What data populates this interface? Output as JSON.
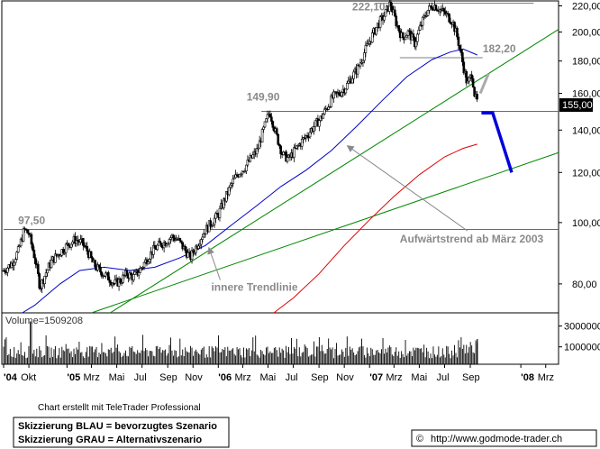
{
  "chart_data": [
    {
      "type": "candlestick",
      "y_scale": "log",
      "ylim": [
        72,
        224
      ],
      "y_ticks": [
        80,
        100,
        120,
        140,
        160,
        180,
        200,
        220
      ],
      "y_tick_labels": [
        "80,00",
        "100,00",
        "120,00",
        "140,00",
        "160,00",
        "180,00",
        "200,00",
        "220,00"
      ],
      "x_range": [
        "2004-08-01",
        "2008-04-01"
      ],
      "x_tick_labels": [
        {
          "label": "'04",
          "date": "2004-08-01",
          "bold": true
        },
        {
          "label": "Okt",
          "date": "2004-10-01",
          "bold": false
        },
        {
          "label": "'05",
          "date": "2005-01-01",
          "bold": true
        },
        {
          "label": "Mrz",
          "date": "2005-03-01",
          "bold": false
        },
        {
          "label": "Mai",
          "date": "2005-05-01",
          "bold": false
        },
        {
          "label": "Jul",
          "date": "2005-07-01",
          "bold": false
        },
        {
          "label": "Sep",
          "date": "2005-09-01",
          "bold": false
        },
        {
          "label": "Nov",
          "date": "2005-11-01",
          "bold": false
        },
        {
          "label": "'06",
          "date": "2006-01-01",
          "bold": true
        },
        {
          "label": "Mrz",
          "date": "2006-03-01",
          "bold": false
        },
        {
          "label": "Mai",
          "date": "2006-05-01",
          "bold": false
        },
        {
          "label": "Jul",
          "date": "2006-07-01",
          "bold": false
        },
        {
          "label": "Sep",
          "date": "2006-09-01",
          "bold": false
        },
        {
          "label": "Nov",
          "date": "2006-11-01",
          "bold": false
        },
        {
          "label": "'07",
          "date": "2007-01-01",
          "bold": true
        },
        {
          "label": "Mrz",
          "date": "2007-03-01",
          "bold": false
        },
        {
          "label": "Mai",
          "date": "2007-05-01",
          "bold": false
        },
        {
          "label": "Jul",
          "date": "2007-07-01",
          "bold": false
        },
        {
          "label": "Sep",
          "date": "2007-09-01",
          "bold": false
        },
        {
          "label": "'08",
          "date": "2008-01-01",
          "bold": true
        },
        {
          "label": "Mrz",
          "date": "2008-03-01",
          "bold": false
        }
      ],
      "price_path": [
        [
          "2004-08-01",
          84
        ],
        [
          "2004-08-20",
          86
        ],
        [
          "2004-09-05",
          90
        ],
        [
          "2004-09-20",
          97.5
        ],
        [
          "2004-10-01",
          96
        ],
        [
          "2004-10-15",
          88
        ],
        [
          "2004-10-28",
          79
        ],
        [
          "2004-11-10",
          83
        ],
        [
          "2004-11-25",
          87
        ],
        [
          "2004-12-10",
          89
        ],
        [
          "2005-01-01",
          92
        ],
        [
          "2005-01-20",
          94
        ],
        [
          "2005-02-05",
          93
        ],
        [
          "2005-02-20",
          90
        ],
        [
          "2005-03-05",
          86
        ],
        [
          "2005-03-20",
          84
        ],
        [
          "2005-04-10",
          82
        ],
        [
          "2005-04-25",
          80
        ],
        [
          "2005-05-10",
          81
        ],
        [
          "2005-05-25",
          83
        ],
        [
          "2005-06-10",
          82
        ],
        [
          "2005-06-25",
          84
        ],
        [
          "2005-07-10",
          87
        ],
        [
          "2005-07-25",
          90
        ],
        [
          "2005-08-10",
          92
        ],
        [
          "2005-08-25",
          93
        ],
        [
          "2005-09-10",
          95
        ],
        [
          "2005-09-25",
          94
        ],
        [
          "2005-10-10",
          91
        ],
        [
          "2005-10-25",
          88
        ],
        [
          "2005-11-10",
          92
        ],
        [
          "2005-11-25",
          96
        ],
        [
          "2005-12-10",
          99
        ],
        [
          "2006-01-01",
          103
        ],
        [
          "2006-01-20",
          110
        ],
        [
          "2006-02-05",
          116
        ],
        [
          "2006-02-20",
          120
        ],
        [
          "2006-03-05",
          122
        ],
        [
          "2006-03-20",
          126
        ],
        [
          "2006-04-05",
          130
        ],
        [
          "2006-04-20",
          140
        ],
        [
          "2006-05-05",
          149.9
        ],
        [
          "2006-05-20",
          138
        ],
        [
          "2006-06-05",
          128
        ],
        [
          "2006-06-20",
          126
        ],
        [
          "2006-07-05",
          130
        ],
        [
          "2006-07-20",
          134
        ],
        [
          "2006-08-05",
          138
        ],
        [
          "2006-08-20",
          142
        ],
        [
          "2006-09-05",
          146
        ],
        [
          "2006-09-20",
          152
        ],
        [
          "2006-10-05",
          158
        ],
        [
          "2006-10-20",
          160
        ],
        [
          "2006-11-05",
          164
        ],
        [
          "2006-11-20",
          170
        ],
        [
          "2006-12-05",
          176
        ],
        [
          "2006-12-20",
          186
        ],
        [
          "2007-01-05",
          196
        ],
        [
          "2007-01-20",
          205
        ],
        [
          "2007-02-05",
          212
        ],
        [
          "2007-02-20",
          222.1
        ],
        [
          "2007-03-05",
          208
        ],
        [
          "2007-03-20",
          196
        ],
        [
          "2007-04-05",
          200
        ],
        [
          "2007-04-20",
          192
        ],
        [
          "2007-05-05",
          205
        ],
        [
          "2007-05-20",
          216
        ],
        [
          "2007-06-05",
          221
        ],
        [
          "2007-06-20",
          217
        ],
        [
          "2007-07-05",
          213
        ],
        [
          "2007-07-20",
          208
        ],
        [
          "2007-08-01",
          196
        ],
        [
          "2007-08-15",
          177
        ],
        [
          "2007-08-25",
          165
        ],
        [
          "2007-09-05",
          172
        ],
        [
          "2007-09-12",
          158
        ],
        [
          "2007-09-18",
          155
        ]
      ],
      "moving_averages": [
        {
          "color": "#0000cc",
          "points": [
            [
              "2004-09-15",
              72
            ],
            [
              "2004-10-15",
              74
            ],
            [
              "2004-11-15",
              77
            ],
            [
              "2004-12-15",
              80
            ],
            [
              "2005-02-01",
              84
            ],
            [
              "2005-04-01",
              85
            ],
            [
              "2005-06-01",
              84
            ],
            [
              "2005-08-01",
              85
            ],
            [
              "2005-10-01",
              88
            ],
            [
              "2005-12-01",
              92
            ],
            [
              "2006-02-01",
              99
            ],
            [
              "2006-04-01",
              106
            ],
            [
              "2006-06-01",
              114
            ],
            [
              "2006-08-01",
              121
            ],
            [
              "2006-10-01",
              130
            ],
            [
              "2006-12-01",
              142
            ],
            [
              "2007-02-01",
              156
            ],
            [
              "2007-04-01",
              170
            ],
            [
              "2007-06-01",
              181
            ],
            [
              "2007-07-15",
              186
            ],
            [
              "2007-08-15",
              188
            ],
            [
              "2007-09-18",
              184
            ]
          ]
        },
        {
          "color": "#dd0000",
          "points": [
            [
              "2006-05-15",
              72
            ],
            [
              "2006-07-01",
              76
            ],
            [
              "2006-09-01",
              83
            ],
            [
              "2006-11-01",
              92
            ],
            [
              "2007-01-01",
              101
            ],
            [
              "2007-03-01",
              110
            ],
            [
              "2007-05-01",
              119
            ],
            [
              "2007-07-01",
              127
            ],
            [
              "2007-08-15",
              131
            ],
            [
              "2007-09-18",
              133
            ]
          ]
        }
      ],
      "trend_lines": [
        {
          "name": "Aufwärtstrend ab März 2003",
          "color": "#008800",
          "from": [
            "2005-04-15",
            72
          ],
          "to": [
            "2008-04-01",
            202
          ]
        },
        {
          "name": "innere Trendlinie",
          "color": "#008800",
          "from": [
            "2005-03-01",
            72
          ],
          "to": [
            "2008-04-01",
            129
          ]
        }
      ],
      "horizontal_levels": [
        {
          "value": 222.1,
          "label": "222,10",
          "from": "2007-01-15",
          "to": "2008-02-01"
        },
        {
          "value": 182.2,
          "label": "182,20",
          "from": "2007-03-15",
          "to": "2007-10-01"
        },
        {
          "value": 149.9,
          "label": "149,90",
          "from": "2006-04-15",
          "to": "2008-04-01"
        },
        {
          "value": 97.5,
          "label": "97,50",
          "from": "2004-08-01",
          "to": "2008-04-01"
        }
      ],
      "scenario_blue": [
        [
          "2007-09-28",
          149
        ],
        [
          "2007-10-25",
          149
        ],
        [
          "2007-12-10",
          120
        ]
      ],
      "scenario_grey": [
        [
          "2007-09-25",
          160
        ],
        [
          "2007-10-15",
          172
        ]
      ],
      "last_price": 155.0,
      "last_price_label": "155,00",
      "annotations": [
        {
          "text": "Aufwärtstrend ab März 2003",
          "pos": [
            "2007-03-15",
            93
          ],
          "arrow_to": [
            "2006-11-10",
            132
          ]
        },
        {
          "text": "innere Trendlinie",
          "pos": [
            "2005-12-15",
            78
          ],
          "arrow_to": [
            "2005-12-10",
            91
          ]
        }
      ]
    },
    {
      "type": "bar",
      "title": "Volume=1509208",
      "y_scale": "log",
      "ylim": [
        400000,
        6000000
      ],
      "y_ticks": [
        1000000,
        3000000
      ],
      "y_tick_labels": [
        "1000000",
        "3000000"
      ],
      "last_volume": 1509208
    }
  ],
  "footer": {
    "credit": "Chart erstellt mit TeleTrader Professional",
    "legend_blue": "Skizzierung BLAU = bevorzugtes Szenario",
    "legend_grey": "Skizzierung GRAU = Alternativszenario",
    "copyright_symbol": "©",
    "url": "http://www.godmode-trader.ch"
  }
}
